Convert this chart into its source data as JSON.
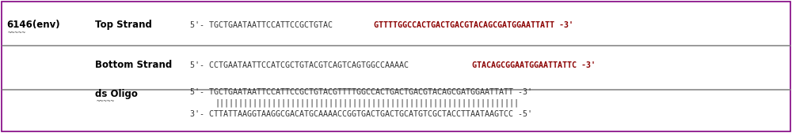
{
  "label_left": "6146(env)",
  "row1_label": "Top Strand",
  "row2_label": "Bottom Strand",
  "row3_label": "ds Oligo",
  "top_strand_prefix": "5'- ",
  "top_strand_normal": "TGCTGAATAATTCCATTCCGCTGTAC",
  "top_strand_bold": "GTTTTGGCCACTGACTGACGTACAGCGATGGAATTATT",
  "top_strand_suffix": " -3'",
  "bottom_strand_prefix": "5'- ",
  "bottom_strand_normal": "CCTGAATAATTCCATCGCTGTACGTCAGTCAGTGGCCAAAAC",
  "bottom_strand_bold": "GTACAGCGGAATGGAATTATTC",
  "bottom_strand_suffix": " -3'",
  "ds_top_prefix": "5'- ",
  "ds_top_seq": "TGCTGAATAATTCCATTCCGCTGTACGTTTTGGCCACTGACTGACGTACAGCGATGGAATTATT",
  "ds_top_suffix": " -3'",
  "ds_bars": "||||||||||||||||||||||||||||||||||||||||||||||||||||||||||||||||",
  "ds_bottom_prefix": "3'- ",
  "ds_bottom_seq": "CTTATTAAGGTAAGGCGACATGCAAAACCGGTGACTGACTGCATGTCGCTACCTTAATAAGTCC",
  "ds_bottom_suffix": " -5'",
  "bg_color": "#ffffff",
  "border_color": "#800080",
  "text_color_dark": "#333333",
  "text_color_bold": "#8B0000",
  "label_color": "#000000",
  "divider_color": "#888888",
  "font_size": 7.2,
  "label_font_size": 8.5,
  "row_label_font_size": 8.5
}
